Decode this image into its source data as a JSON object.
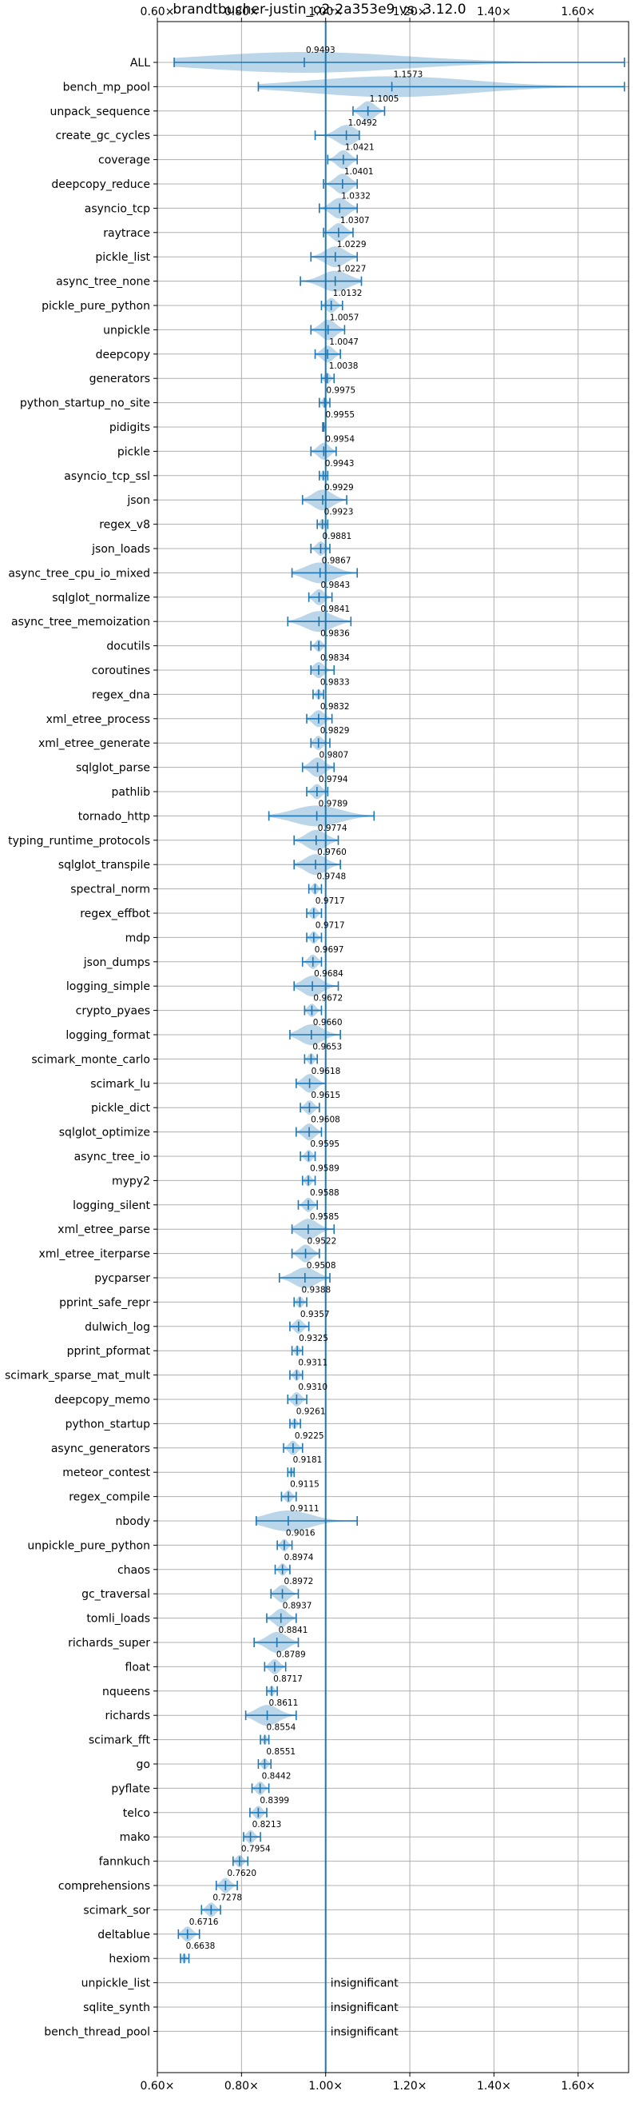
{
  "chart_data": {
    "type": "violin",
    "title": "brandtbucher-justin_o2-2a353e9 vs. 3.12.0",
    "xlim": [
      0.6,
      1.72
    ],
    "x_ticks": [
      0.6,
      0.8,
      1.0,
      1.2,
      1.4,
      1.6
    ],
    "x_tick_labels": [
      "0.60×",
      "0.80×",
      "1.00×",
      "1.20×",
      "1.40×",
      "1.60×"
    ],
    "reference_line": 1.0,
    "grid": true,
    "insignificant_label": "insignificant",
    "benchmarks": [
      {
        "name": "ALL",
        "value_label": "0.9493",
        "median": 0.9493,
        "min": 0.64,
        "max": 1.71
      },
      {
        "name": "bench_mp_pool",
        "value_label": "1.1573",
        "median": 1.1573,
        "min": 0.84,
        "max": 1.71
      },
      {
        "name": "unpack_sequence",
        "value_label": "1.1005",
        "median": 1.1005,
        "min": 1.065,
        "max": 1.14
      },
      {
        "name": "create_gc_cycles",
        "value_label": "1.0492",
        "median": 1.0492,
        "min": 0.975,
        "max": 1.08
      },
      {
        "name": "coverage",
        "value_label": "1.0421",
        "median": 1.0421,
        "min": 1.005,
        "max": 1.075
      },
      {
        "name": "deepcopy_reduce",
        "value_label": "1.0401",
        "median": 1.0401,
        "min": 0.995,
        "max": 1.075
      },
      {
        "name": "asyncio_tcp",
        "value_label": "1.0332",
        "median": 1.0332,
        "min": 0.985,
        "max": 1.075
      },
      {
        "name": "raytrace",
        "value_label": "1.0307",
        "median": 1.0307,
        "min": 0.995,
        "max": 1.065
      },
      {
        "name": "pickle_list",
        "value_label": "1.0229",
        "median": 1.0229,
        "min": 0.965,
        "max": 1.075
      },
      {
        "name": "async_tree_none",
        "value_label": "1.0227",
        "median": 1.0227,
        "min": 0.94,
        "max": 1.085
      },
      {
        "name": "pickle_pure_python",
        "value_label": "1.0132",
        "median": 1.0132,
        "min": 0.99,
        "max": 1.04
      },
      {
        "name": "unpickle",
        "value_label": "1.0057",
        "median": 1.0057,
        "min": 0.965,
        "max": 1.045
      },
      {
        "name": "deepcopy",
        "value_label": "1.0047",
        "median": 1.0047,
        "min": 0.975,
        "max": 1.035
      },
      {
        "name": "generators",
        "value_label": "1.0038",
        "median": 1.0038,
        "min": 0.99,
        "max": 1.02
      },
      {
        "name": "python_startup_no_site",
        "value_label": "0.9975",
        "median": 0.9975,
        "min": 0.985,
        "max": 1.01
      },
      {
        "name": "pidigits",
        "value_label": "0.9955",
        "median": 0.9955,
        "min": 0.993,
        "max": 1.0
      },
      {
        "name": "pickle",
        "value_label": "0.9954",
        "median": 0.9954,
        "min": 0.965,
        "max": 1.025
      },
      {
        "name": "asyncio_tcp_ssl",
        "value_label": "0.9943",
        "median": 0.9943,
        "min": 0.985,
        "max": 1.005
      },
      {
        "name": "json",
        "value_label": "0.9929",
        "median": 0.9929,
        "min": 0.945,
        "max": 1.05
      },
      {
        "name": "regex_v8",
        "value_label": "0.9923",
        "median": 0.9923,
        "min": 0.98,
        "max": 1.005
      },
      {
        "name": "json_loads",
        "value_label": "0.9881",
        "median": 0.9881,
        "min": 0.965,
        "max": 1.01
      },
      {
        "name": "async_tree_cpu_io_mixed",
        "value_label": "0.9867",
        "median": 0.9867,
        "min": 0.92,
        "max": 1.075
      },
      {
        "name": "sqlglot_normalize",
        "value_label": "0.9843",
        "median": 0.9843,
        "min": 0.96,
        "max": 1.015
      },
      {
        "name": "async_tree_memoization",
        "value_label": "0.9841",
        "median": 0.9841,
        "min": 0.91,
        "max": 1.06
      },
      {
        "name": "docutils",
        "value_label": "0.9836",
        "median": 0.9836,
        "min": 0.965,
        "max": 1.0
      },
      {
        "name": "coroutines",
        "value_label": "0.9834",
        "median": 0.9834,
        "min": 0.965,
        "max": 1.02
      },
      {
        "name": "regex_dna",
        "value_label": "0.9833",
        "median": 0.9833,
        "min": 0.97,
        "max": 0.995
      },
      {
        "name": "xml_etree_process",
        "value_label": "0.9832",
        "median": 0.9832,
        "min": 0.955,
        "max": 1.015
      },
      {
        "name": "xml_etree_generate",
        "value_label": "0.9829",
        "median": 0.9829,
        "min": 0.965,
        "max": 1.01
      },
      {
        "name": "sqlglot_parse",
        "value_label": "0.9807",
        "median": 0.9807,
        "min": 0.945,
        "max": 1.02
      },
      {
        "name": "pathlib",
        "value_label": "0.9794",
        "median": 0.9794,
        "min": 0.955,
        "max": 1.005
      },
      {
        "name": "tornado_http",
        "value_label": "0.9789",
        "median": 0.9789,
        "min": 0.865,
        "max": 1.115
      },
      {
        "name": "typing_runtime_protocols",
        "value_label": "0.9774",
        "median": 0.9774,
        "min": 0.925,
        "max": 1.03
      },
      {
        "name": "sqlglot_transpile",
        "value_label": "0.9760",
        "median": 0.976,
        "min": 0.925,
        "max": 1.035
      },
      {
        "name": "spectral_norm",
        "value_label": "0.9748",
        "median": 0.9748,
        "min": 0.96,
        "max": 0.99
      },
      {
        "name": "regex_effbot",
        "value_label": "0.9717",
        "median": 0.9717,
        "min": 0.955,
        "max": 0.99
      },
      {
        "name": "mdp",
        "value_label": "0.9717",
        "median": 0.9717,
        "min": 0.955,
        "max": 0.99
      },
      {
        "name": "json_dumps",
        "value_label": "0.9697",
        "median": 0.9697,
        "min": 0.945,
        "max": 0.99
      },
      {
        "name": "logging_simple",
        "value_label": "0.9684",
        "median": 0.9684,
        "min": 0.925,
        "max": 1.03
      },
      {
        "name": "crypto_pyaes",
        "value_label": "0.9672",
        "median": 0.9672,
        "min": 0.95,
        "max": 0.99
      },
      {
        "name": "logging_format",
        "value_label": "0.9660",
        "median": 0.966,
        "min": 0.915,
        "max": 1.035
      },
      {
        "name": "scimark_monte_carlo",
        "value_label": "0.9653",
        "median": 0.9653,
        "min": 0.95,
        "max": 0.98
      },
      {
        "name": "scimark_lu",
        "value_label": "0.9618",
        "median": 0.9618,
        "min": 0.93,
        "max": 1.0
      },
      {
        "name": "pickle_dict",
        "value_label": "0.9615",
        "median": 0.9615,
        "min": 0.94,
        "max": 0.985
      },
      {
        "name": "sqlglot_optimize",
        "value_label": "0.9608",
        "median": 0.9608,
        "min": 0.93,
        "max": 0.99
      },
      {
        "name": "async_tree_io",
        "value_label": "0.9595",
        "median": 0.9595,
        "min": 0.94,
        "max": 0.975
      },
      {
        "name": "mypy2",
        "value_label": "0.9589",
        "median": 0.9589,
        "min": 0.945,
        "max": 0.975
      },
      {
        "name": "logging_silent",
        "value_label": "0.9588",
        "median": 0.9588,
        "min": 0.935,
        "max": 0.98
      },
      {
        "name": "xml_etree_parse",
        "value_label": "0.9585",
        "median": 0.9585,
        "min": 0.92,
        "max": 1.02
      },
      {
        "name": "xml_etree_iterparse",
        "value_label": "0.9522",
        "median": 0.9522,
        "min": 0.92,
        "max": 0.985
      },
      {
        "name": "pycparser",
        "value_label": "0.9508",
        "median": 0.9508,
        "min": 0.89,
        "max": 1.01
      },
      {
        "name": "pprint_safe_repr",
        "value_label": "0.9388",
        "median": 0.9388,
        "min": 0.925,
        "max": 0.955
      },
      {
        "name": "dulwich_log",
        "value_label": "0.9357",
        "median": 0.9357,
        "min": 0.915,
        "max": 0.96
      },
      {
        "name": "pprint_pformat",
        "value_label": "0.9325",
        "median": 0.9325,
        "min": 0.92,
        "max": 0.945
      },
      {
        "name": "scimark_sparse_mat_mult",
        "value_label": "0.9311",
        "median": 0.9311,
        "min": 0.915,
        "max": 0.945
      },
      {
        "name": "deepcopy_memo",
        "value_label": "0.9310",
        "median": 0.931,
        "min": 0.91,
        "max": 0.955
      },
      {
        "name": "python_startup",
        "value_label": "0.9261",
        "median": 0.9261,
        "min": 0.915,
        "max": 0.94
      },
      {
        "name": "async_generators",
        "value_label": "0.9225",
        "median": 0.9225,
        "min": 0.9,
        "max": 0.945
      },
      {
        "name": "meteor_contest",
        "value_label": "0.9181",
        "median": 0.9181,
        "min": 0.91,
        "max": 0.925
      },
      {
        "name": "regex_compile",
        "value_label": "0.9115",
        "median": 0.9115,
        "min": 0.895,
        "max": 0.93
      },
      {
        "name": "nbody",
        "value_label": "0.9111",
        "median": 0.9111,
        "min": 0.835,
        "max": 1.075
      },
      {
        "name": "unpickle_pure_python",
        "value_label": "0.9016",
        "median": 0.9016,
        "min": 0.885,
        "max": 0.92
      },
      {
        "name": "chaos",
        "value_label": "0.8974",
        "median": 0.8974,
        "min": 0.88,
        "max": 0.915
      },
      {
        "name": "gc_traversal",
        "value_label": "0.8972",
        "median": 0.8972,
        "min": 0.87,
        "max": 0.935
      },
      {
        "name": "tomli_loads",
        "value_label": "0.8937",
        "median": 0.8937,
        "min": 0.86,
        "max": 0.93
      },
      {
        "name": "richards_super",
        "value_label": "0.8841",
        "median": 0.8841,
        "min": 0.83,
        "max": 0.935
      },
      {
        "name": "float",
        "value_label": "0.8789",
        "median": 0.8789,
        "min": 0.855,
        "max": 0.905
      },
      {
        "name": "nqueens",
        "value_label": "0.8717",
        "median": 0.8717,
        "min": 0.86,
        "max": 0.885
      },
      {
        "name": "richards",
        "value_label": "0.8611",
        "median": 0.8611,
        "min": 0.81,
        "max": 0.93
      },
      {
        "name": "scimark_fft",
        "value_label": "0.8554",
        "median": 0.8554,
        "min": 0.845,
        "max": 0.865
      },
      {
        "name": "go",
        "value_label": "0.8551",
        "median": 0.8551,
        "min": 0.84,
        "max": 0.87
      },
      {
        "name": "pyflate",
        "value_label": "0.8442",
        "median": 0.8442,
        "min": 0.825,
        "max": 0.865
      },
      {
        "name": "telco",
        "value_label": "0.8399",
        "median": 0.8399,
        "min": 0.82,
        "max": 0.86
      },
      {
        "name": "mako",
        "value_label": "0.8213",
        "median": 0.8213,
        "min": 0.805,
        "max": 0.845
      },
      {
        "name": "fannkuch",
        "value_label": "0.7954",
        "median": 0.7954,
        "min": 0.78,
        "max": 0.815
      },
      {
        "name": "comprehensions",
        "value_label": "0.7620",
        "median": 0.762,
        "min": 0.74,
        "max": 0.79
      },
      {
        "name": "scimark_sor",
        "value_label": "0.7278",
        "median": 0.7278,
        "min": 0.705,
        "max": 0.75
      },
      {
        "name": "deltablue",
        "value_label": "0.6716",
        "median": 0.6716,
        "min": 0.65,
        "max": 0.7
      },
      {
        "name": "hexiom",
        "value_label": "0.6638",
        "median": 0.6638,
        "min": 0.655,
        "max": 0.675
      },
      {
        "name": "unpickle_list",
        "value_label": "",
        "median": null,
        "insignificant": true
      },
      {
        "name": "sqlite_synth",
        "value_label": "",
        "median": null,
        "insignificant": true
      },
      {
        "name": "bench_thread_pool",
        "value_label": "",
        "median": null,
        "insignificant": true
      }
    ]
  },
  "colors": {
    "series": "#1f77b4",
    "grid": "#b0b0b0",
    "text": "#000000"
  }
}
